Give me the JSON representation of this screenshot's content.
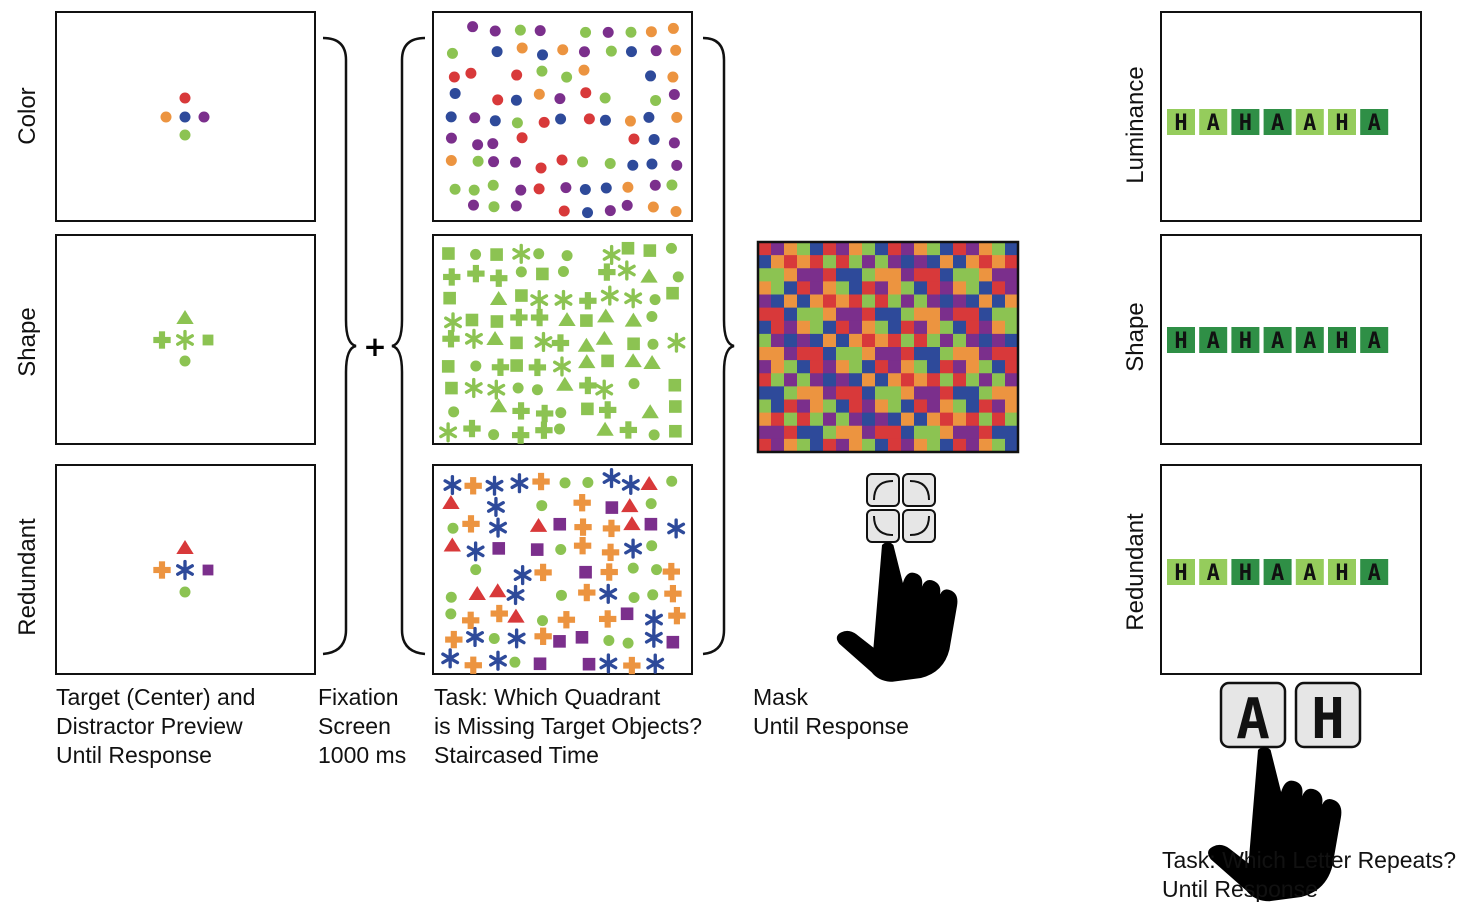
{
  "preview": {
    "rows": [
      {
        "label": "Color"
      },
      {
        "label": "Shape"
      },
      {
        "label": "Redundant"
      }
    ],
    "caption": [
      "Target (Center) and",
      "Distractor Preview",
      "Until Response"
    ]
  },
  "fixation": {
    "symbol": "+",
    "caption": [
      "Fixation",
      "Screen",
      "1000 ms"
    ]
  },
  "search": {
    "caption": [
      "Task: Which Quadrant",
      "is Missing Target Objects?",
      "Staircased Time"
    ]
  },
  "mask": {
    "caption": [
      "Mask",
      "Until Response"
    ]
  },
  "letters": {
    "rows": [
      {
        "label": "Luminance",
        "sequence": [
          "H",
          "A",
          "H",
          "A",
          "A",
          "H",
          "A"
        ]
      },
      {
        "label": "Shape",
        "sequence": [
          "H",
          "A",
          "H",
          "A",
          "A",
          "H",
          "A"
        ]
      },
      {
        "label": "Redundant",
        "sequence": [
          "H",
          "A",
          "H",
          "A",
          "A",
          "H",
          "A"
        ]
      }
    ],
    "keys": [
      "A",
      "H"
    ],
    "caption": [
      "Task: Which Letter Repeats?",
      "Until Response"
    ]
  },
  "colors": {
    "red": "#d8393a",
    "orange": "#ec9440",
    "blue": "#2e4a9a",
    "purple": "#7b2f8c",
    "green": "#8cc352",
    "light_green": "#95cc5c",
    "dark_green": "#2f8f46"
  }
}
